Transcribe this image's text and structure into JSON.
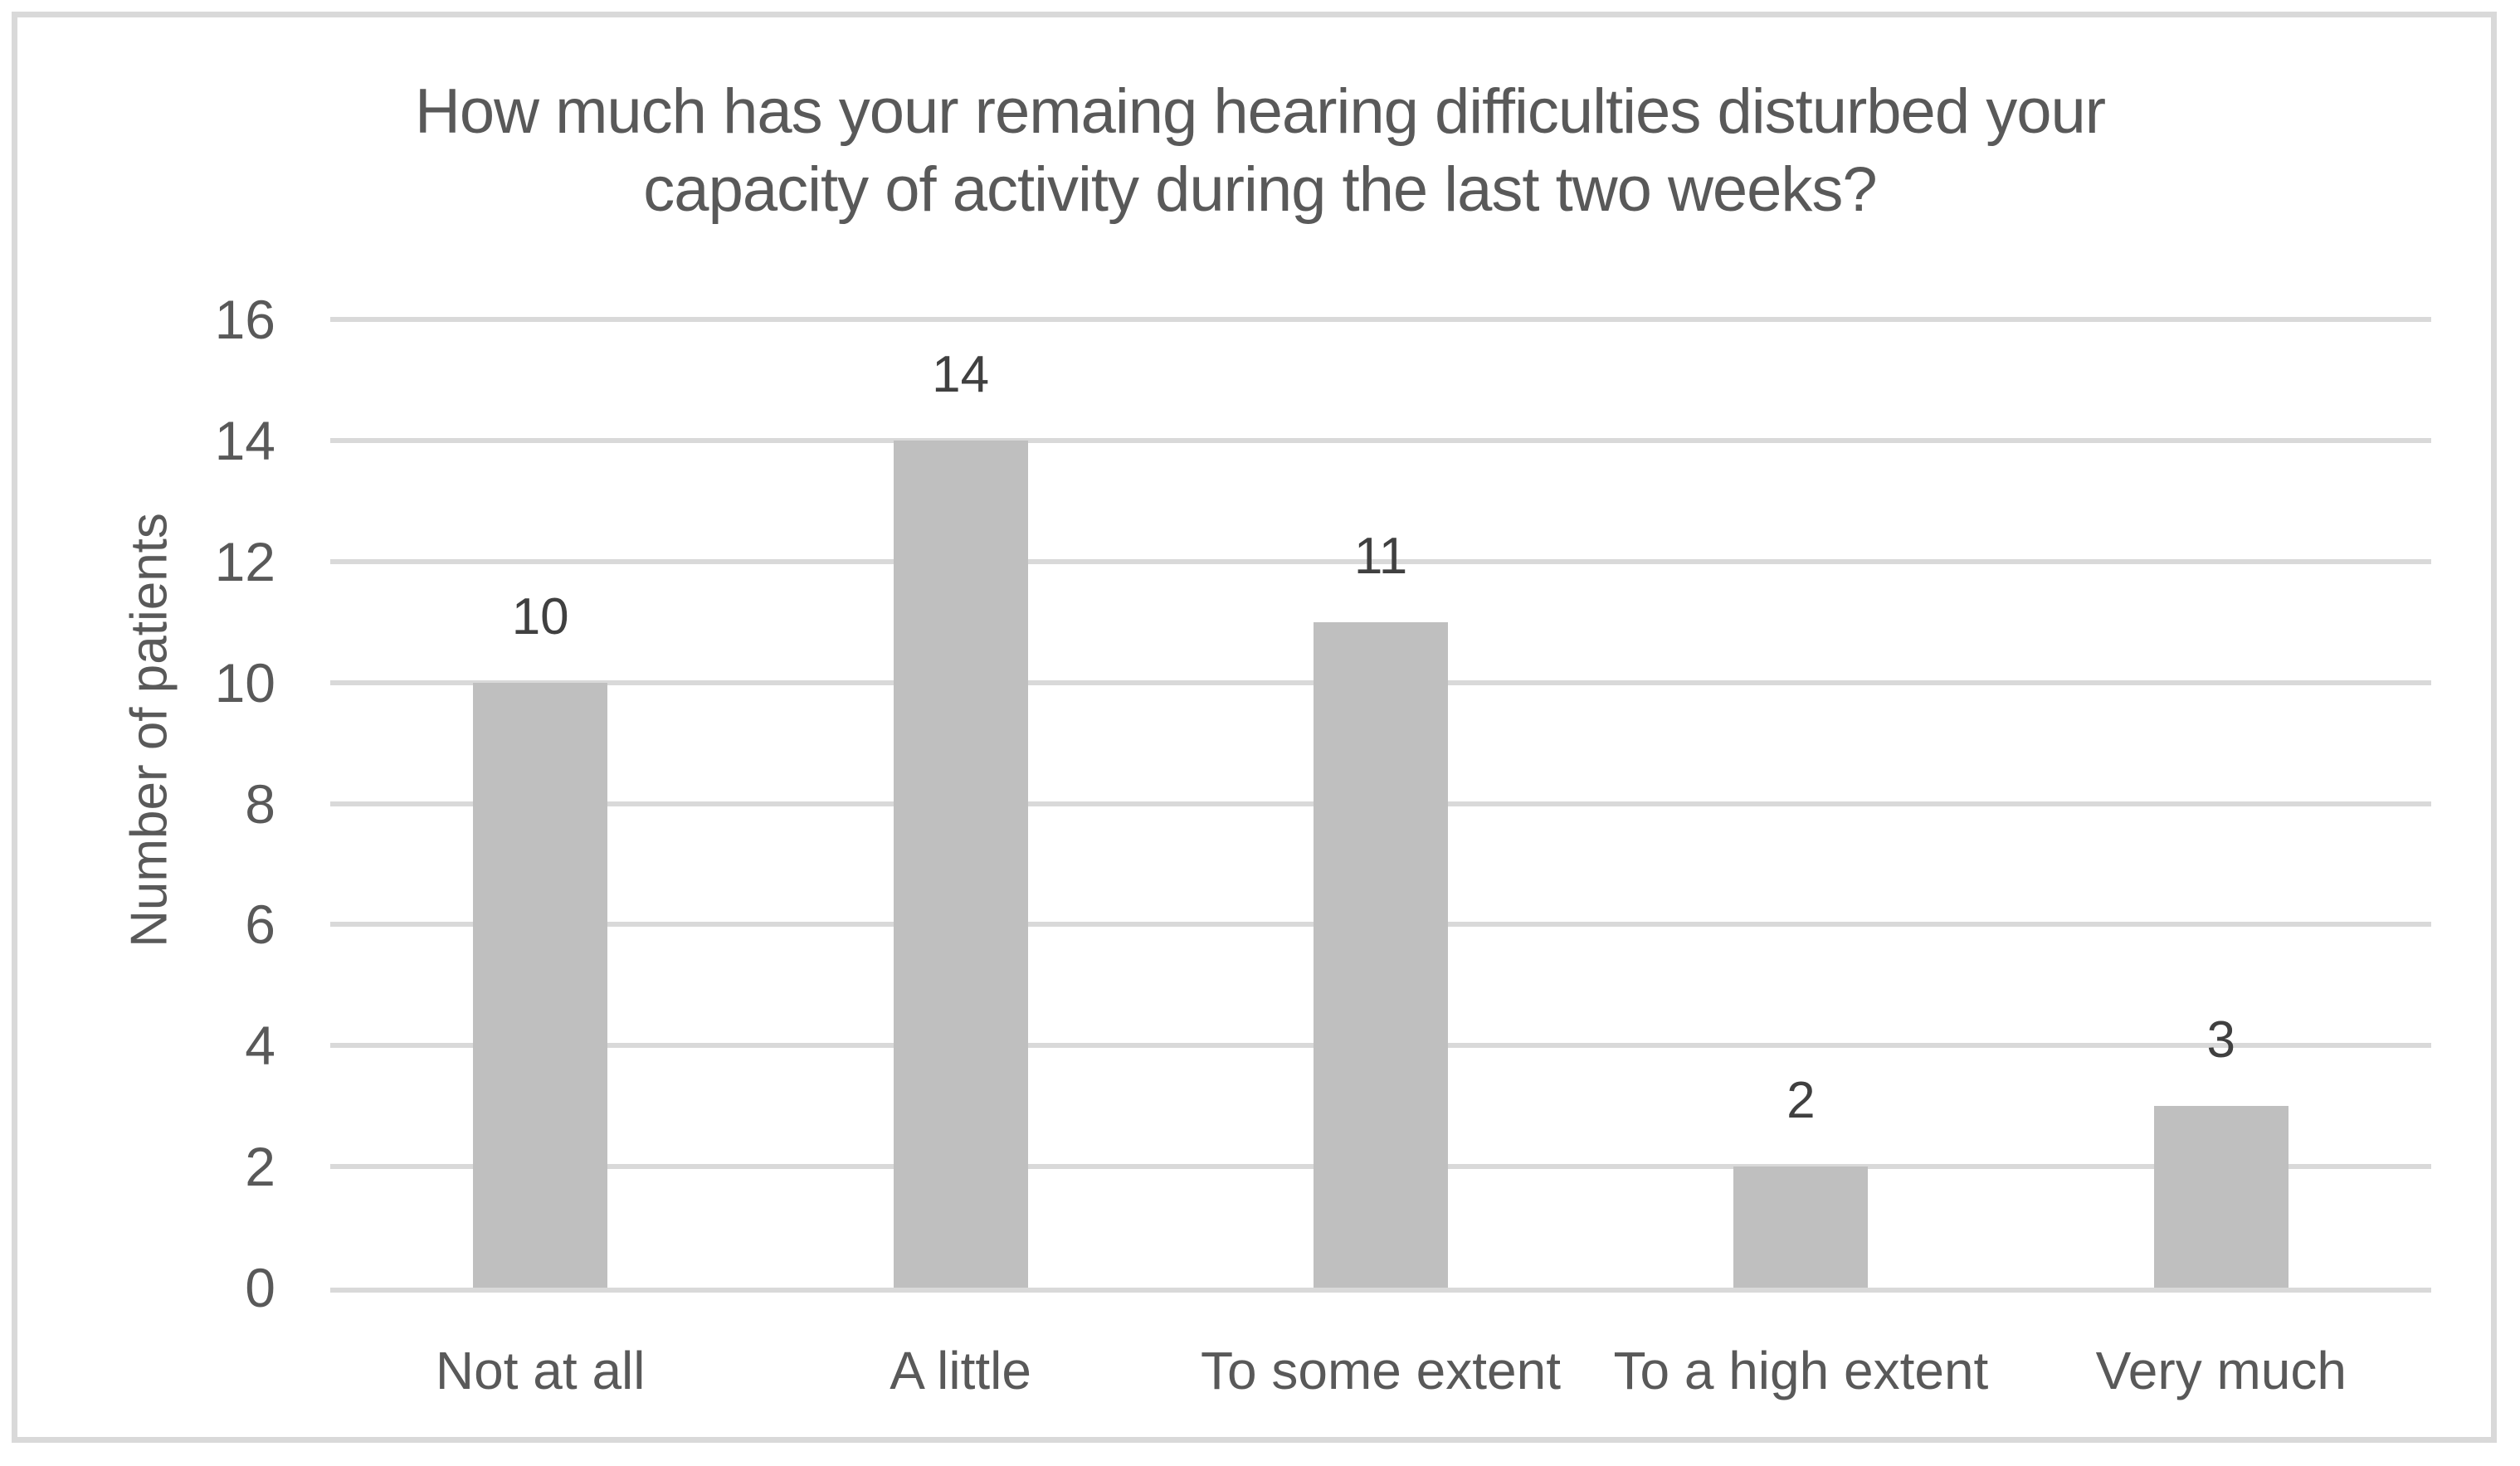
{
  "chart_data": {
    "type": "bar",
    "title": "How much has your remaing hearing difficulties disturbed your capacity of activity during the last two weeks?",
    "title_lines": [
      "How much has your remaing hearing difficulties disturbed your",
      "capacity of activity during the last two weeks?"
    ],
    "categories": [
      "Not at all",
      "A little",
      "To some extent",
      "To a high extent",
      "Very much"
    ],
    "values": [
      10,
      14,
      11,
      2,
      3
    ],
    "data_labels": [
      "10",
      "14",
      "11",
      "2",
      "3"
    ],
    "xlabel": "",
    "ylabel": "Number of patients",
    "ylim": [
      0,
      16
    ],
    "yticks": [
      0,
      2,
      4,
      6,
      8,
      10,
      12,
      14,
      16
    ],
    "grid": "horizontal",
    "legend": "none",
    "colors": {
      "bar_fill": "#bfbfbf",
      "gridline": "#d9d9d9",
      "axis_text": "#595959",
      "data_label_text": "#404040",
      "title_text": "#595959",
      "frame_border": "#d9d9d9",
      "background": "#ffffff"
    }
  }
}
